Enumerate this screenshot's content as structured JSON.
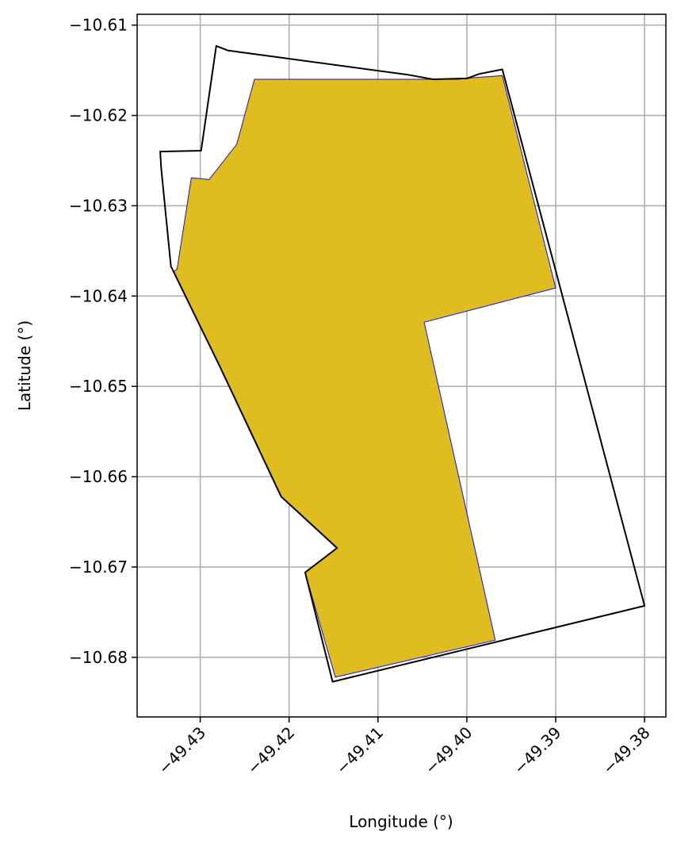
{
  "chart_data": {
    "type": "map",
    "title": "",
    "xlabel": "Longitude (°)",
    "ylabel": "Latitude (°)",
    "xlim": [
      -49.4371,
      -49.3776
    ],
    "ylim": [
      -10.6866,
      -10.6088
    ],
    "xticks": [
      -49.43,
      -49.42,
      -49.41,
      -49.4,
      -49.39,
      -49.38
    ],
    "xtick_labels": [
      "−49.43",
      "−49.42",
      "−49.41",
      "−49.40",
      "−49.39",
      "−49.38"
    ],
    "yticks": [
      -10.61,
      -10.62,
      -10.63,
      -10.64,
      -10.65,
      -10.66,
      -10.67,
      -10.68
    ],
    "ytick_labels": [
      "−10.61",
      "−10.62",
      "−10.63",
      "−10.64",
      "−10.65",
      "−10.66",
      "−10.67",
      "−10.68"
    ],
    "grid": true,
    "series": [
      {
        "role": "boundary",
        "fill": "none",
        "stroke": "#000000",
        "points": [
          [
            -49.4282,
            -10.6123
          ],
          [
            -49.4269,
            -10.6128
          ],
          [
            -49.4066,
            -10.6155
          ],
          [
            -49.4038,
            -10.616
          ],
          [
            -49.4,
            -10.6159
          ],
          [
            -49.3986,
            -10.6154
          ],
          [
            -49.396,
            -10.6149
          ],
          [
            -49.38,
            -10.6743
          ],
          [
            -49.4151,
            -10.6827
          ],
          [
            -49.4182,
            -10.6706
          ],
          [
            -49.4146,
            -10.6679
          ],
          [
            -49.4209,
            -10.6622
          ],
          [
            -49.4278,
            -10.6478
          ],
          [
            -49.4333,
            -10.6367
          ],
          [
            -49.4344,
            -10.6258
          ],
          [
            -49.4345,
            -10.624
          ],
          [
            -49.4299,
            -10.6239
          ],
          [
            -49.4282,
            -10.6123
          ]
        ]
      },
      {
        "role": "area",
        "fill": "#dfbd1f",
        "stroke": "#1a10c8",
        "points": [
          [
            -49.4239,
            -10.616
          ],
          [
            -49.401,
            -10.616
          ],
          [
            -49.399,
            -10.6158
          ],
          [
            -49.396,
            -10.6156
          ],
          [
            -49.39,
            -10.6391
          ],
          [
            -49.4048,
            -10.6429
          ],
          [
            -49.3968,
            -10.6781
          ],
          [
            -49.4148,
            -10.6822
          ],
          [
            -49.4182,
            -10.6706
          ],
          [
            -49.4146,
            -10.6679
          ],
          [
            -49.4209,
            -10.6622
          ],
          [
            -49.4278,
            -10.6478
          ],
          [
            -49.433,
            -10.6373
          ],
          [
            -49.4326,
            -10.637
          ],
          [
            -49.431,
            -10.6269
          ],
          [
            -49.429,
            -10.6271
          ],
          [
            -49.4259,
            -10.6232
          ],
          [
            -49.4239,
            -10.616
          ]
        ]
      }
    ]
  }
}
